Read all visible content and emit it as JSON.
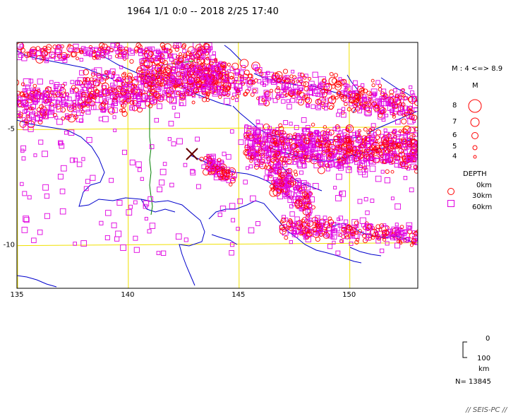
{
  "title": "1964 1/1 0:0 -- 2018 2/25 17:40",
  "map": {
    "lon_range": [
      135,
      153.1
    ],
    "lat_range": [
      -11.9,
      -1.3
    ],
    "x_ticks": [
      {
        "value": 135,
        "label": "135"
      },
      {
        "value": 140,
        "label": "140"
      },
      {
        "value": 145,
        "label": "145"
      },
      {
        "value": 150,
        "label": "150"
      }
    ],
    "y_ticks": [
      {
        "value": -5,
        "label": "-5"
      },
      {
        "value": -10,
        "label": "-10"
      }
    ],
    "grid_lines": true,
    "colors": {
      "grid": "#f0e000",
      "coast": "#0000cc",
      "border": "#008000",
      "shallow_event": "#ff0000",
      "deep_event": "#e000e0",
      "frame": "#000000"
    },
    "epicenter_marker_icon": "x-mark-icon"
  },
  "legend": {
    "magnitude_range": "M : 4 <=> 8.9",
    "magnitude_title": "M",
    "magnitudes": [
      "8",
      "7",
      "6",
      "5",
      "4"
    ],
    "depth_title": "DEPTH",
    "depths": [
      "0km",
      "30km",
      "60km"
    ],
    "depth_symbols": [
      "none",
      "circle-icon",
      "square-icon"
    ]
  },
  "scale": {
    "top": "0",
    "bottom": "100",
    "unit": "km"
  },
  "count": "N= 13845",
  "credit": "// SEIS-PC //"
}
